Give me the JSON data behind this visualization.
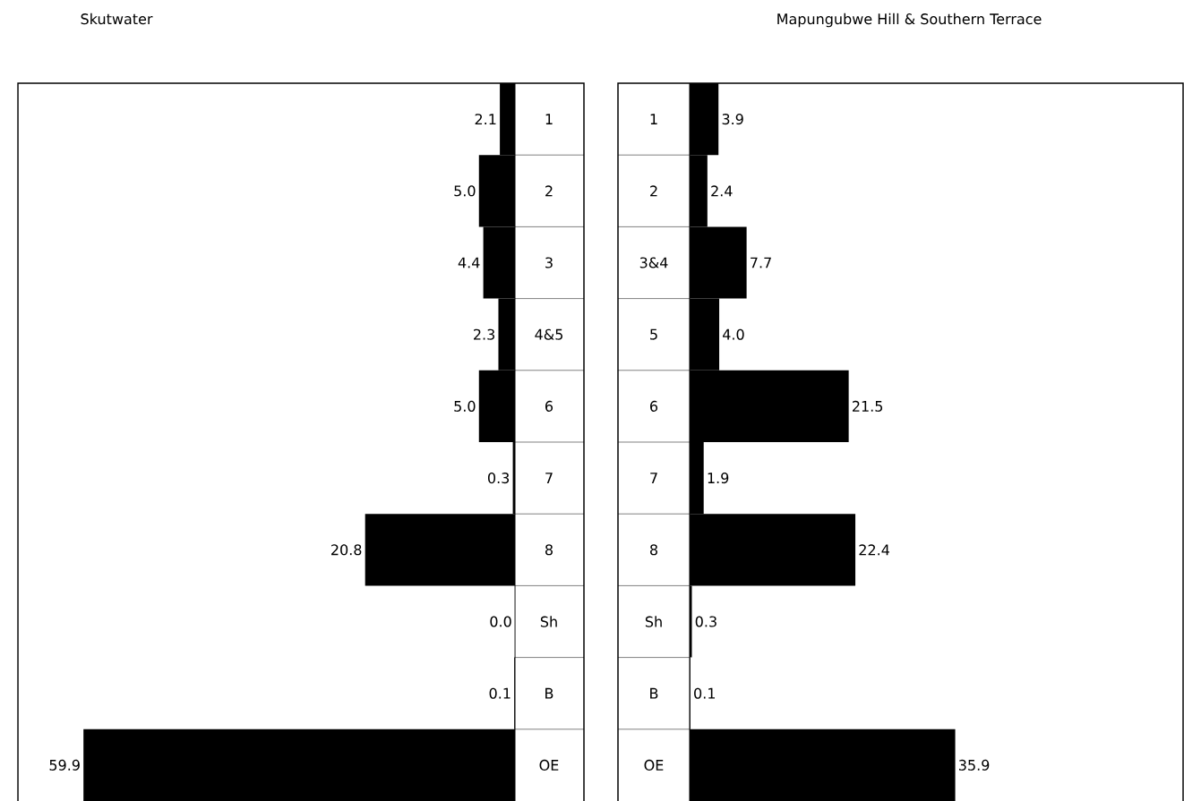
{
  "chart_data": [
    {
      "type": "bar",
      "orientation": "horizontal",
      "title": "Skutwater",
      "categories": [
        "1",
        "2",
        "3",
        "4&5",
        "6",
        "7",
        "8",
        "Sh",
        "B",
        "OE"
      ],
      "values": [
        2.1,
        5.0,
        4.4,
        2.3,
        5.0,
        0.3,
        20.8,
        0.0,
        0.1,
        59.9
      ],
      "value_labels": [
        "2.1",
        "5.0",
        "4.4",
        "2.3",
        "5.0",
        "0.3",
        "20.8",
        "0.0",
        "0.1",
        "59.9"
      ],
      "color": "#000000",
      "xlim": [
        69,
        0
      ],
      "tick_labels": "y"
    },
    {
      "type": "bar",
      "orientation": "horizontal",
      "title": "Mapungubwe Hill & Southern Terrace",
      "categories": [
        "1",
        "2",
        "3&4",
        "5",
        "6",
        "7",
        "8",
        "Sh",
        "B",
        "OE"
      ],
      "values": [
        3.9,
        2.4,
        7.7,
        4.0,
        21.5,
        1.9,
        22.4,
        0.3,
        0.1,
        35.9
      ],
      "value_labels": [
        "3.9",
        "2.4",
        "7.7",
        "4.0",
        "21.5",
        "1.9",
        "22.4",
        "0.3",
        "0.1",
        "35.9"
      ],
      "color": "#000000",
      "xlim": [
        0,
        66.7
      ],
      "tick_labels": "y"
    }
  ]
}
